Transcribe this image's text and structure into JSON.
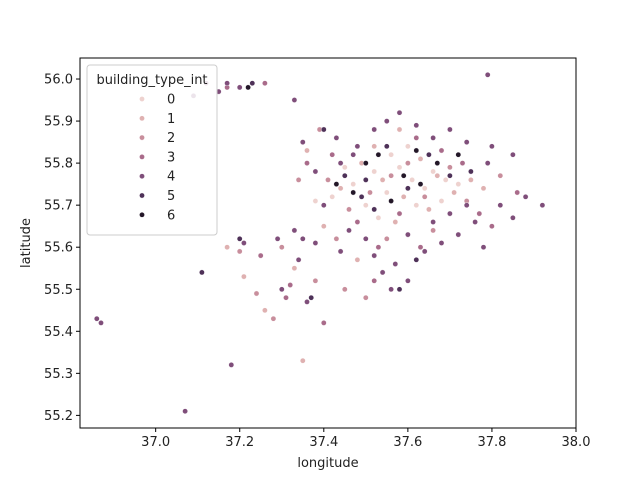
{
  "chart_data": {
    "type": "scatter",
    "title": "",
    "xlabel": "longitude",
    "ylabel": "latitude",
    "xlim": [
      36.82,
      38.0
    ],
    "ylim": [
      55.17,
      56.05
    ],
    "x_ticks": [
      37.0,
      37.2,
      37.4,
      37.6,
      37.8,
      38.0
    ],
    "x_tick_labels": [
      "37.0",
      "37.2",
      "37.4",
      "37.6",
      "37.8",
      "38.0"
    ],
    "y_ticks": [
      55.2,
      55.3,
      55.4,
      55.5,
      55.6,
      55.7,
      55.8,
      55.9,
      56.0
    ],
    "y_tick_labels": [
      "55.2",
      "55.3",
      "55.4",
      "55.5",
      "55.6",
      "55.7",
      "55.8",
      "55.9",
      "56.0"
    ],
    "grid": false,
    "legend": {
      "title": "building_type_int",
      "placement": "top-left",
      "entries": [
        "0",
        "1",
        "2",
        "3",
        "4",
        "5",
        "6"
      ]
    },
    "hue_colors": {
      "0": "#eed2cf",
      "1": "#dfb1b1",
      "2": "#c88e9c",
      "3": "#a96b8a",
      "4": "#7f4e7a",
      "5": "#4e3158",
      "6": "#231728"
    },
    "series": [
      {
        "name": "0",
        "points": [
          [
            37.42,
            55.72
          ],
          [
            37.47,
            55.75
          ],
          [
            37.52,
            55.78
          ],
          [
            37.55,
            55.73
          ],
          [
            37.58,
            55.79
          ],
          [
            37.61,
            55.76
          ],
          [
            37.64,
            55.74
          ],
          [
            37.66,
            55.78
          ],
          [
            37.69,
            55.76
          ],
          [
            37.72,
            55.75
          ],
          [
            37.5,
            55.7
          ],
          [
            37.56,
            55.82
          ],
          [
            37.62,
            55.7
          ],
          [
            37.45,
            55.79
          ],
          [
            37.38,
            55.71
          ],
          [
            37.6,
            55.84
          ],
          [
            37.68,
            55.71
          ],
          [
            37.53,
            55.67
          ]
        ]
      },
      {
        "name": "1",
        "points": [
          [
            37.4,
            55.65
          ],
          [
            37.44,
            55.74
          ],
          [
            37.49,
            55.8
          ],
          [
            37.54,
            55.76
          ],
          [
            37.59,
            55.72
          ],
          [
            37.63,
            55.81
          ],
          [
            37.67,
            55.77
          ],
          [
            37.71,
            55.73
          ],
          [
            37.75,
            55.76
          ],
          [
            37.36,
            55.83
          ],
          [
            37.33,
            55.55
          ],
          [
            37.17,
            55.6
          ],
          [
            37.26,
            55.45
          ],
          [
            37.21,
            55.53
          ],
          [
            37.35,
            55.33
          ],
          [
            37.48,
            55.57
          ],
          [
            37.57,
            55.66
          ],
          [
            37.65,
            55.69
          ],
          [
            37.78,
            55.74
          ],
          [
            37.52,
            55.84
          ],
          [
            37.58,
            55.88
          ]
        ]
      },
      {
        "name": "2",
        "points": [
          [
            37.43,
            55.62
          ],
          [
            37.46,
            55.69
          ],
          [
            37.51,
            55.73
          ],
          [
            37.56,
            55.77
          ],
          [
            37.6,
            55.8
          ],
          [
            37.64,
            55.72
          ],
          [
            37.7,
            55.79
          ],
          [
            37.74,
            55.71
          ],
          [
            37.39,
            55.88
          ],
          [
            37.41,
            55.76
          ],
          [
            37.3,
            55.6
          ],
          [
            37.2,
            55.59
          ],
          [
            37.24,
            55.49
          ],
          [
            37.38,
            55.52
          ],
          [
            37.45,
            55.5
          ],
          [
            37.5,
            55.48
          ],
          [
            37.55,
            55.62
          ],
          [
            37.66,
            55.64
          ],
          [
            37.34,
            55.76
          ],
          [
            37.82,
            55.77
          ],
          [
            37.28,
            55.43
          ]
        ]
      },
      {
        "name": "3",
        "points": [
          [
            37.36,
            55.8
          ],
          [
            37.42,
            55.82
          ],
          [
            37.48,
            55.66
          ],
          [
            37.53,
            55.6
          ],
          [
            37.58,
            55.68
          ],
          [
            37.62,
            55.86
          ],
          [
            37.68,
            55.83
          ],
          [
            37.73,
            55.8
          ],
          [
            37.77,
            55.68
          ],
          [
            37.25,
            55.58
          ],
          [
            37.17,
            55.98
          ],
          [
            37.26,
            55.99
          ],
          [
            37.32,
            55.51
          ],
          [
            37.4,
            55.42
          ],
          [
            37.52,
            55.52
          ],
          [
            37.63,
            55.6
          ],
          [
            37.8,
            55.65
          ],
          [
            37.86,
            55.73
          ],
          [
            37.31,
            55.48
          ]
        ]
      },
      {
        "name": "4",
        "points": [
          [
            37.35,
            55.85
          ],
          [
            37.38,
            55.78
          ],
          [
            37.4,
            55.7
          ],
          [
            37.43,
            55.86
          ],
          [
            37.46,
            55.64
          ],
          [
            37.48,
            55.84
          ],
          [
            37.5,
            55.62
          ],
          [
            37.52,
            55.88
          ],
          [
            37.54,
            55.54
          ],
          [
            37.55,
            55.9
          ],
          [
            37.57,
            55.56
          ],
          [
            37.58,
            55.92
          ],
          [
            37.6,
            55.63
          ],
          [
            37.62,
            55.89
          ],
          [
            37.64,
            55.59
          ],
          [
            37.66,
            55.86
          ],
          [
            37.68,
            55.61
          ],
          [
            37.7,
            55.88
          ],
          [
            37.72,
            55.63
          ],
          [
            37.74,
            55.85
          ],
          [
            37.76,
            55.66
          ],
          [
            37.79,
            55.8
          ],
          [
            37.82,
            55.7
          ],
          [
            37.85,
            55.67
          ],
          [
            37.88,
            55.72
          ],
          [
            37.92,
            55.7
          ],
          [
            37.44,
            55.59
          ],
          [
            37.38,
            55.61
          ],
          [
            37.33,
            55.64
          ],
          [
            37.29,
            55.62
          ],
          [
            37.56,
            55.5
          ],
          [
            37.6,
            55.52
          ],
          [
            37.47,
            55.82
          ],
          [
            37.44,
            55.8
          ],
          [
            37.52,
            55.58
          ],
          [
            37.66,
            55.66
          ],
          [
            37.7,
            55.68
          ],
          [
            37.74,
            55.7
          ],
          [
            37.78,
            55.6
          ],
          [
            37.12,
            55.99
          ],
          [
            37.17,
            55.99
          ],
          [
            37.2,
            55.98
          ],
          [
            37.09,
            55.96
          ],
          [
            37.15,
            55.97
          ],
          [
            36.86,
            55.43
          ],
          [
            36.87,
            55.42
          ],
          [
            37.07,
            55.21
          ],
          [
            37.18,
            55.32
          ],
          [
            37.33,
            55.95
          ],
          [
            37.35,
            55.62
          ],
          [
            37.21,
            55.61
          ],
          [
            37.36,
            55.47
          ],
          [
            37.79,
            56.01
          ],
          [
            37.85,
            55.82
          ],
          [
            37.8,
            55.84
          ],
          [
            37.3,
            55.5
          ],
          [
            37.34,
            55.57
          ]
        ]
      },
      {
        "name": "5",
        "points": [
          [
            37.4,
            55.88
          ],
          [
            37.45,
            55.77
          ],
          [
            37.5,
            55.76
          ],
          [
            37.55,
            55.84
          ],
          [
            37.6,
            55.74
          ],
          [
            37.65,
            55.82
          ],
          [
            37.7,
            55.77
          ],
          [
            37.52,
            55.69
          ],
          [
            37.58,
            55.5
          ],
          [
            37.75,
            55.78
          ],
          [
            37.23,
            55.99
          ],
          [
            37.11,
            55.54
          ],
          [
            37.2,
            55.62
          ],
          [
            37.37,
            55.48
          ],
          [
            37.62,
            55.57
          ],
          [
            37.49,
            55.72
          ]
        ]
      },
      {
        "name": "6",
        "points": [
          [
            37.47,
            55.73
          ],
          [
            37.53,
            55.82
          ],
          [
            37.59,
            55.77
          ],
          [
            37.63,
            55.75
          ],
          [
            37.67,
            55.8
          ],
          [
            37.56,
            55.71
          ],
          [
            37.62,
            55.83
          ],
          [
            37.5,
            55.8
          ],
          [
            37.72,
            55.82
          ],
          [
            37.22,
            55.98
          ],
          [
            37.43,
            55.75
          ]
        ]
      }
    ]
  }
}
